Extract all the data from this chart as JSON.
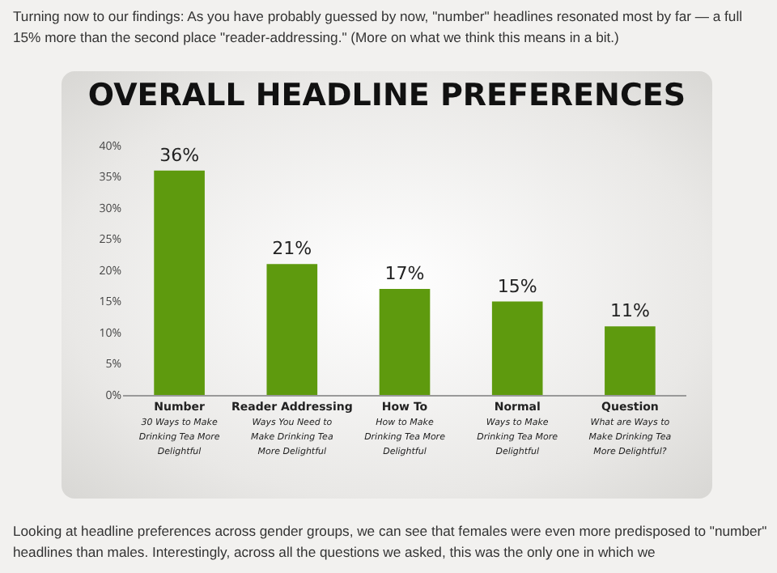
{
  "chart_data": {
    "type": "bar",
    "title": "OVERALL HEADLINE PREFERENCES",
    "categories": [
      "Number\n30 Ways to Make Drinking Tea More Delightful",
      "Reader Addressing\nWays You Need to Make Drinking Tea More Delightful",
      "How To\nHow to Make Drinking Tea More Delightful",
      "Normal\nWays to Make Drinking Tea More Delightful",
      "Question\nWhat are Ways to Make Drinking Tea More Delightful?"
    ],
    "values": [
      36,
      21,
      17,
      15,
      11
    ],
    "value_labels": [
      "36%",
      "21%",
      "17%",
      "15%",
      "11%"
    ],
    "color": "#5e9a0e",
    "ylim": [
      0,
      40
    ],
    "yticks": [
      {
        "value": 0,
        "label": "0%"
      },
      {
        "value": 5,
        "label": "5%"
      },
      {
        "value": 10,
        "label": "10%"
      },
      {
        "value": 15,
        "label": "15%"
      },
      {
        "value": 20,
        "label": "20%"
      },
      {
        "value": 25,
        "label": "25%"
      },
      {
        "value": 30,
        "label": "30%"
      },
      {
        "value": 35,
        "label": "35%"
      },
      {
        "value": 40,
        "label": "40%"
      }
    ],
    "annotations": [
      "Turning now to our findings: As you have probably guessed by now, \"number\" headlines resonated most by far — a full 15% more than the second place \"reader-addressing.\" (More on what we think this means in a bit.)",
      "Looking at headline preferences across gender groups, we can see that females were even more predisposed to \"number\" headlines than males. Interestingly, across all the questions we asked, this was the only one in which we"
    ]
  }
}
